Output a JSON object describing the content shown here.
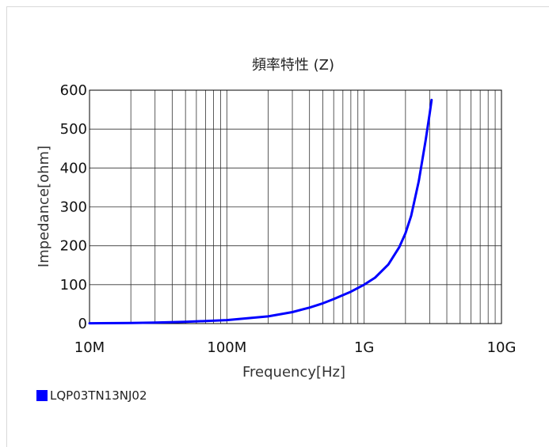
{
  "chart_data": {
    "type": "line",
    "title": "頻率特性 (Z)",
    "xlabel": "Frequency[Hz]",
    "ylabel": "Impedance[ohm]",
    "x_scale": "log",
    "xlim": [
      10000000,
      10000000000
    ],
    "ylim": [
      0,
      600
    ],
    "x_ticks": [
      {
        "value": 10000000,
        "label": "10M"
      },
      {
        "value": 100000000,
        "label": "100M"
      },
      {
        "value": 1000000000,
        "label": "1G"
      },
      {
        "value": 10000000000,
        "label": "10G"
      }
    ],
    "y_ticks": [
      {
        "value": 0,
        "label": "0"
      },
      {
        "value": 100,
        "label": "100"
      },
      {
        "value": 200,
        "label": "200"
      },
      {
        "value": 300,
        "label": "300"
      },
      {
        "value": 400,
        "label": "400"
      },
      {
        "value": 500,
        "label": "500"
      },
      {
        "value": 600,
        "label": "600"
      }
    ],
    "grid": true,
    "legend_position": "bottom-left",
    "series": [
      {
        "name": "LQP03TN13NJ02",
        "color": "#0000ff",
        "x": [
          10000000,
          20000000,
          30000000,
          50000000,
          100000000,
          200000000,
          300000000,
          400000000,
          500000000,
          600000000,
          800000000,
          1000000000,
          1200000000,
          1500000000,
          1800000000,
          2000000000,
          2200000000,
          2500000000,
          2800000000,
          3000000000,
          3100000000
        ],
        "y": [
          0.8,
          1.7,
          2.6,
          4.4,
          8.9,
          18.6,
          29.5,
          41,
          52,
          63,
          82,
          100,
          118,
          152,
          196,
          232,
          277,
          366,
          470,
          540,
          575
        ]
      }
    ]
  }
}
